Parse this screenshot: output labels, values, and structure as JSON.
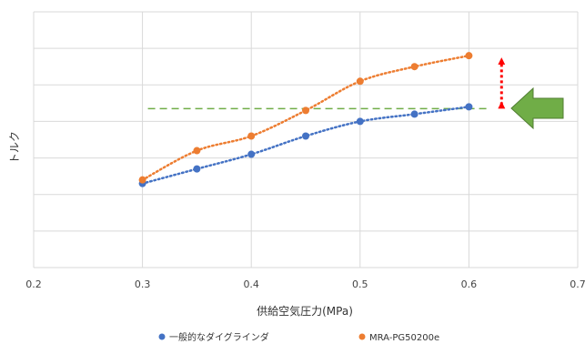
{
  "chart_data": {
    "type": "scatter",
    "title": "",
    "xlabel": "供給空気圧力(MPa)",
    "ylabel": "トルク",
    "xlim": [
      0.2,
      0.7
    ],
    "xticks": [
      "0.2",
      "0.3",
      "0.4",
      "0.5",
      "0.6",
      "0.7"
    ],
    "y_tick_labels_visible": false,
    "grid": true,
    "legend_position": "bottom",
    "series": [
      {
        "name": "一般的なダイグラインダ",
        "color": "#4472C4",
        "x": [
          0.3,
          0.35,
          0.4,
          0.45,
          0.5,
          0.55,
          0.6
        ],
        "y": [
          2.3,
          2.7,
          3.1,
          3.6,
          4.0,
          4.2,
          4.4
        ],
        "trendline": "dotted"
      },
      {
        "name": "MRA-PG50200e",
        "color": "#ED7D31",
        "x": [
          0.3,
          0.35,
          0.4,
          0.45,
          0.5,
          0.55,
          0.6
        ],
        "y": [
          2.4,
          3.2,
          3.6,
          4.3,
          5.1,
          5.5,
          5.8
        ],
        "trendline": "dotted"
      }
    ],
    "annotations": [
      {
        "type": "dashed-reference-line",
        "color": "#70AD47",
        "y": 4.35,
        "x_from": 0.305,
        "x_to": 0.62
      },
      {
        "type": "double-arrow",
        "color": "#FF0000",
        "x": 0.63,
        "y_from": 4.3,
        "y_to": 5.8
      },
      {
        "type": "block-arrow-left",
        "color": "#70AD47"
      }
    ]
  }
}
